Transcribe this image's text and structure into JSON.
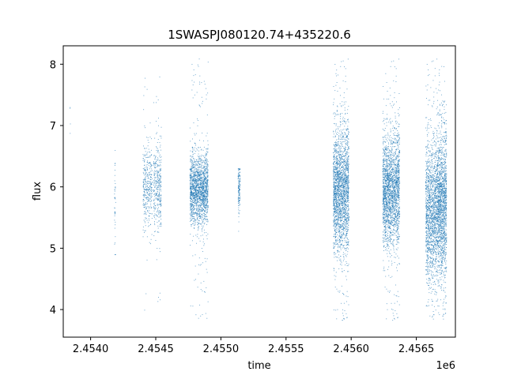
{
  "chart_data": {
    "type": "scatter",
    "title": "1SWASPJ080120.74+435220.6",
    "xlabel": "time",
    "ylabel": "flux",
    "x_offset_label": "1e6",
    "xlim": [
      2453790,
      2456800
    ],
    "ylim": [
      3.55,
      8.3
    ],
    "x_ticks": [
      2454000,
      2454500,
      2455000,
      2455500,
      2456000,
      2456500
    ],
    "x_tick_labels": [
      "2.4540",
      "2.4545",
      "2.4550",
      "2.4555",
      "2.4560",
      "2.4565"
    ],
    "y_ticks": [
      4,
      5,
      6,
      7,
      8
    ],
    "y_tick_labels": [
      "4",
      "5",
      "6",
      "7",
      "8"
    ],
    "grid": false,
    "point_color": "#1f77b4",
    "clusters": [
      {
        "x_start": 2453830,
        "x_end": 2453845,
        "y_center": 7.0,
        "y_spread": 0.3,
        "y_min": 6.7,
        "y_max": 7.3,
        "density": 4
      },
      {
        "x_start": 2454180,
        "x_end": 2454190,
        "y_center": 5.7,
        "y_spread": 0.45,
        "y_min": 4.9,
        "y_max": 6.6,
        "density": 40
      },
      {
        "x_start": 2454400,
        "x_end": 2454470,
        "y_center": 6.0,
        "y_spread": 0.35,
        "y_min": 3.85,
        "y_max": 7.9,
        "density": 350
      },
      {
        "x_start": 2454480,
        "x_end": 2454540,
        "y_center": 6.0,
        "y_spread": 0.35,
        "y_min": 3.8,
        "y_max": 7.9,
        "density": 350
      },
      {
        "x_start": 2454760,
        "x_end": 2454900,
        "y_center": 5.95,
        "y_spread": 0.28,
        "y_min": 3.85,
        "y_max": 8.1,
        "density": 1800
      },
      {
        "x_start": 2455130,
        "x_end": 2455145,
        "y_center": 6.0,
        "y_spread": 0.2,
        "y_min": 5.2,
        "y_max": 6.3,
        "density": 140
      },
      {
        "x_start": 2455860,
        "x_end": 2455980,
        "y_center": 5.95,
        "y_spread": 0.5,
        "y_min": 3.78,
        "y_max": 8.1,
        "density": 2200
      },
      {
        "x_start": 2456240,
        "x_end": 2456370,
        "y_center": 5.95,
        "y_spread": 0.45,
        "y_min": 3.78,
        "y_max": 8.1,
        "density": 2200
      },
      {
        "x_start": 2456570,
        "x_end": 2456660,
        "y_center": 5.6,
        "y_spread": 0.55,
        "y_min": 3.85,
        "y_max": 8.1,
        "density": 1500
      },
      {
        "x_start": 2456660,
        "x_end": 2456730,
        "y_center": 5.7,
        "y_spread": 0.6,
        "y_min": 3.85,
        "y_max": 8.1,
        "density": 1500
      }
    ]
  }
}
